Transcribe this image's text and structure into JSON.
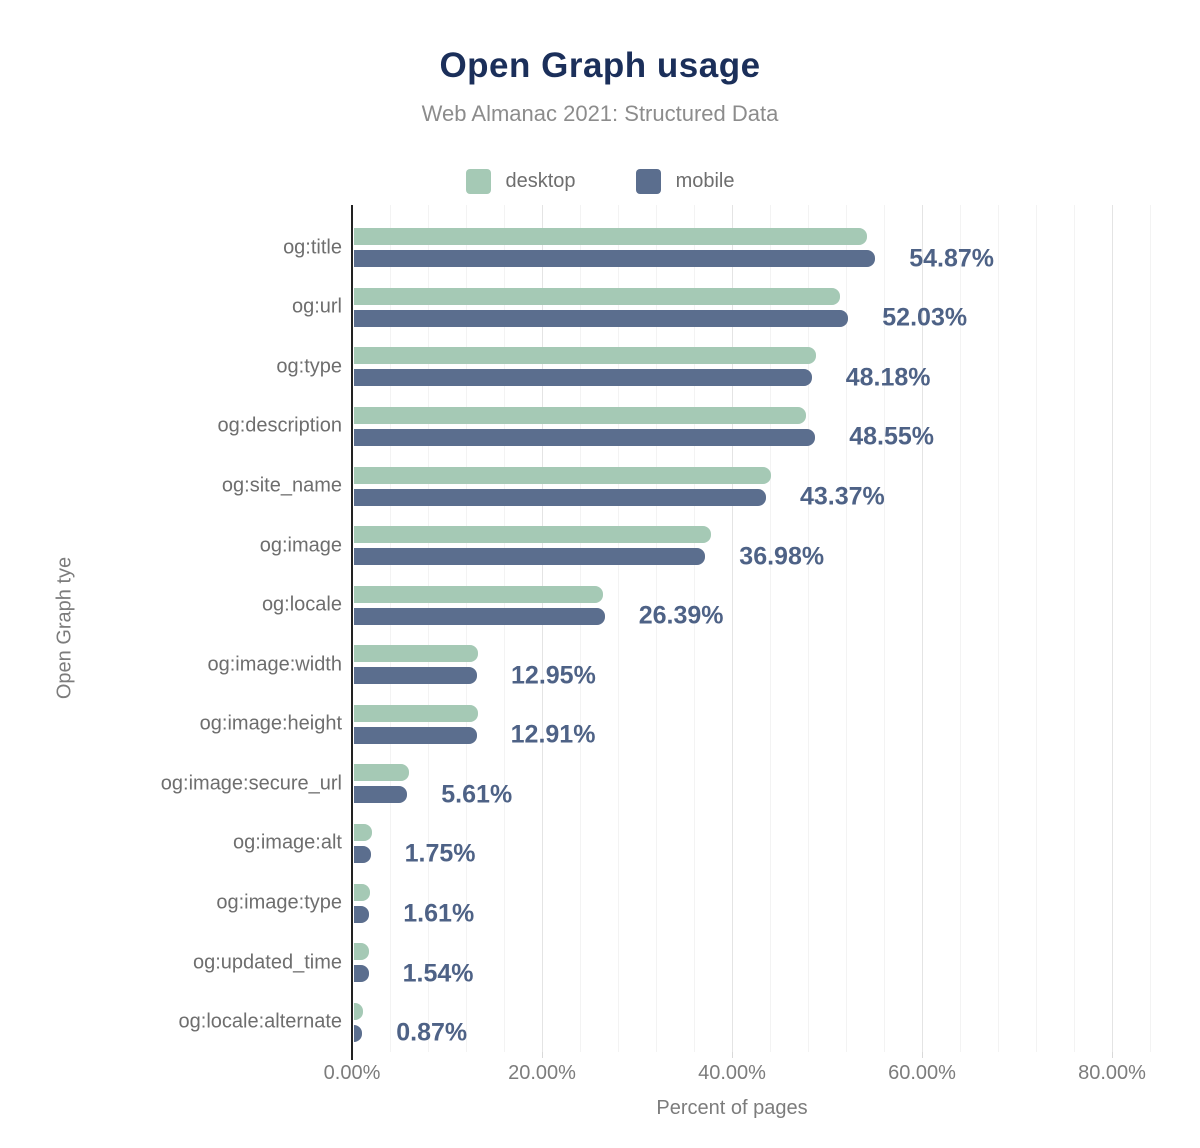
{
  "title": "Open Graph usage",
  "subtitle": "Web Almanac 2021: Structured Data",
  "colors": {
    "desktop": "#a5c9b5",
    "mobile": "#5b6e8e",
    "title": "#1b2f5a",
    "value_label": "#4e6286",
    "axis_line": "#222222",
    "muted_text": "#7c7c7c"
  },
  "legend": {
    "items": [
      {
        "label": "desktop",
        "color": "#a5c9b5"
      },
      {
        "label": "mobile",
        "color": "#5b6e8e"
      }
    ]
  },
  "chart_data": {
    "type": "bar",
    "orientation": "horizontal",
    "title": "Open Graph usage",
    "subtitle": "Web Almanac 2021: Structured Data",
    "xlabel": "Percent of pages",
    "ylabel": "Open Graph tye",
    "legend_position": "top",
    "grid": "vertical, minor every 4%, major every 20%",
    "xlim": [
      0,
      88
    ],
    "x_ticks": [
      "0.00%",
      "20.00%",
      "40.00%",
      "60.00%",
      "80.00%"
    ],
    "x_tick_values": [
      0,
      20,
      40,
      60,
      80
    ],
    "categories": [
      "og:title",
      "og:url",
      "og:type",
      "og:description",
      "og:site_name",
      "og:image",
      "og:locale",
      "og:image:width",
      "og:image:height",
      "og:image:secure_url",
      "og:image:alt",
      "og:image:type",
      "og:updated_time",
      "og:locale:alternate"
    ],
    "series": [
      {
        "name": "desktop",
        "color": "#a5c9b5",
        "values": [
          54.0,
          51.2,
          48.6,
          47.6,
          43.9,
          37.6,
          26.2,
          13.1,
          13.0,
          5.8,
          1.9,
          1.7,
          1.6,
          0.9
        ]
      },
      {
        "name": "mobile",
        "color": "#5b6e8e",
        "values": [
          54.87,
          52.03,
          48.18,
          48.55,
          43.37,
          36.98,
          26.39,
          12.95,
          12.91,
          5.61,
          1.75,
          1.61,
          1.54,
          0.87
        ]
      }
    ],
    "value_labels": [
      "54.87%",
      "52.03%",
      "48.18%",
      "48.55%",
      "43.37%",
      "36.98%",
      "26.39%",
      "12.95%",
      "12.91%",
      "5.61%",
      "1.75%",
      "1.61%",
      "1.54%",
      "0.87%"
    ],
    "value_labels_series": "mobile"
  }
}
